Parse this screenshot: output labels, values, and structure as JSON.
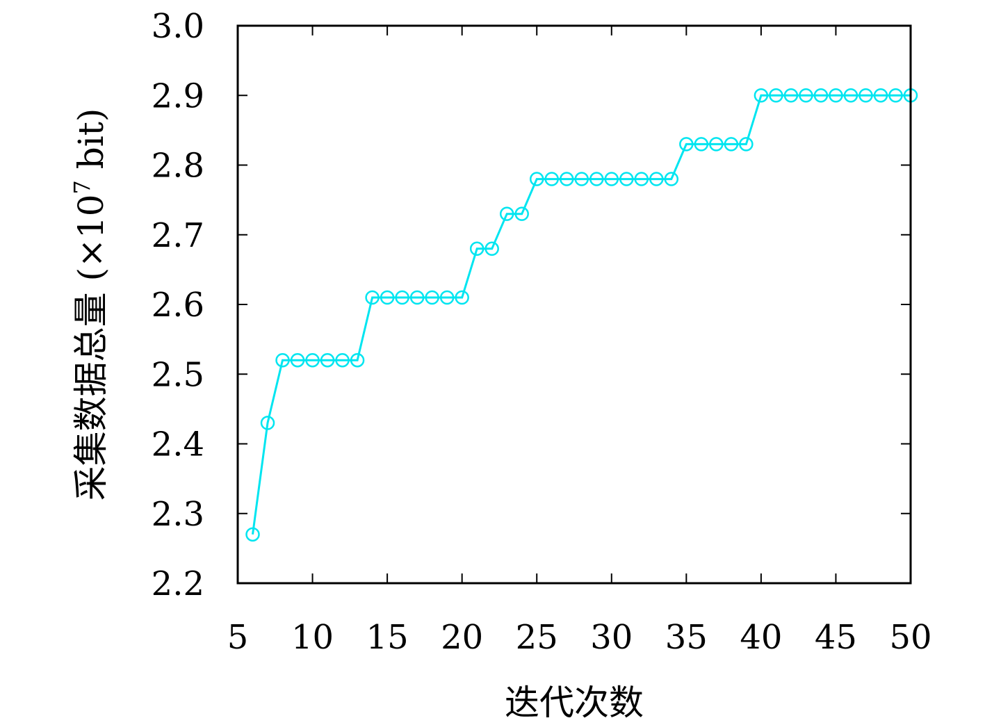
{
  "chart_data": {
    "type": "line",
    "title": "",
    "xlabel": "迭代次数",
    "ylabel_text": "采集数据总量 (×10",
    "ylabel_exponent": "7",
    "ylabel_unit": " bit)",
    "xlim": [
      5,
      50
    ],
    "ylim": [
      2.2,
      3.0
    ],
    "xticks": [
      "5",
      "10",
      "15",
      "20",
      "25",
      "30",
      "35",
      "40",
      "45",
      "50"
    ],
    "yticks": [
      "2.2",
      "2.3",
      "2.4",
      "2.5",
      "2.6",
      "2.7",
      "2.8",
      "2.9",
      "3.0"
    ],
    "grid": false,
    "series": [
      {
        "color": "#00e5f0",
        "marker": "circle-open",
        "x": [
          6,
          7,
          8,
          9,
          10,
          11,
          12,
          13,
          14,
          15,
          16,
          17,
          18,
          19,
          20,
          21,
          22,
          23,
          24,
          25,
          26,
          27,
          28,
          29,
          30,
          31,
          32,
          33,
          34,
          35,
          36,
          37,
          38,
          39,
          40,
          41,
          42,
          43,
          44,
          45,
          46,
          47,
          48,
          49,
          50
        ],
        "y": [
          2.27,
          2.43,
          2.52,
          2.52,
          2.52,
          2.52,
          2.52,
          2.52,
          2.61,
          2.61,
          2.61,
          2.61,
          2.61,
          2.61,
          2.61,
          2.68,
          2.68,
          2.73,
          2.73,
          2.78,
          2.78,
          2.78,
          2.78,
          2.78,
          2.78,
          2.78,
          2.78,
          2.78,
          2.78,
          2.83,
          2.83,
          2.83,
          2.83,
          2.83,
          2.9,
          2.9,
          2.9,
          2.9,
          2.9,
          2.9,
          2.9,
          2.9,
          2.9,
          2.9,
          2.9
        ]
      }
    ]
  }
}
